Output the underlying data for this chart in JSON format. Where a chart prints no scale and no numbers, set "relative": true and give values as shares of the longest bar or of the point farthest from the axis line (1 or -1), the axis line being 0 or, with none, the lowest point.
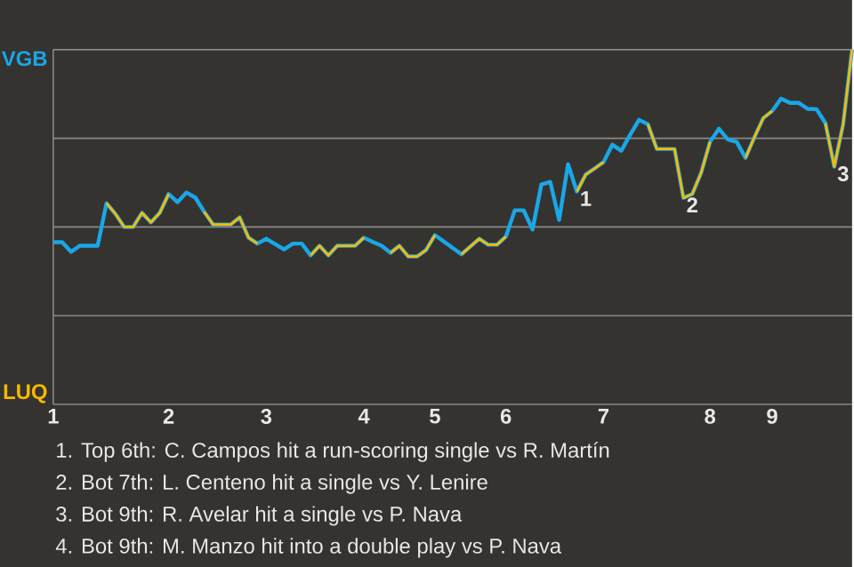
{
  "chart_data": {
    "type": "line",
    "relative": true,
    "categories": [
      "1",
      null,
      null,
      null,
      null,
      null,
      null,
      null,
      null,
      null,
      null,
      null,
      null,
      "2",
      null,
      null,
      null,
      null,
      null,
      null,
      null,
      null,
      null,
      null,
      "3",
      null,
      null,
      null,
      null,
      null,
      null,
      null,
      null,
      null,
      null,
      "4",
      null,
      null,
      null,
      null,
      null,
      null,
      null,
      "5",
      null,
      null,
      null,
      null,
      null,
      null,
      null,
      "6",
      null,
      null,
      null,
      null,
      null,
      null,
      null,
      null,
      null,
      null,
      "7",
      null,
      null,
      null,
      null,
      null,
      null,
      null,
      null,
      null,
      null,
      null,
      "8",
      null,
      null,
      null,
      null,
      null,
      null,
      "9",
      null,
      null,
      null,
      null,
      null,
      null,
      null,
      null,
      null
    ],
    "series": [
      {
        "color": "#1aa7e8",
        "values": [
          0.457,
          0.457,
          0.43,
          0.447,
          0.447,
          0.447,
          0.567,
          0.537,
          0.5,
          0.5,
          0.54,
          0.513,
          0.54,
          0.593,
          0.57,
          0.597,
          0.583,
          0.543,
          0.507,
          0.507,
          0.507,
          0.527,
          0.47,
          0.453,
          0.467,
          0.452,
          0.437,
          0.453,
          0.453,
          0.42,
          0.447,
          0.42,
          0.447,
          0.447,
          0.447,
          0.47,
          0.458,
          0.447,
          0.427,
          0.447,
          0.417,
          0.417,
          0.435,
          0.477,
          0.459,
          0.441,
          0.423,
          0.445,
          0.467,
          0.45,
          0.45,
          0.473,
          0.547,
          0.547,
          0.493,
          0.62,
          0.627,
          0.52,
          0.677,
          0.6,
          0.648,
          0.665,
          0.683,
          0.732,
          0.715,
          0.76,
          0.802,
          0.79,
          0.72,
          0.72,
          0.72,
          0.582,
          0.593,
          0.653,
          0.74,
          0.777,
          0.747,
          0.74,
          0.695,
          0.753,
          0.807,
          0.827,
          0.862,
          0.85,
          0.85,
          0.833,
          0.832,
          0.793,
          0.67,
          0.79,
          1
        ]
      },
      {
        "color": "#f7b900",
        "values": [
          null,
          null,
          null,
          null,
          null,
          null,
          0.567,
          0.537,
          0.5,
          0.5,
          0.54,
          0.513,
          0.54,
          0.593,
          null,
          null,
          null,
          0.543,
          0.507,
          0.507,
          0.507,
          0.527,
          0.47,
          0.453,
          null,
          null,
          null,
          null,
          null,
          0.42,
          0.447,
          0.42,
          0.447,
          0.447,
          0.447,
          0.47,
          null,
          null,
          0.427,
          0.447,
          0.417,
          0.417,
          0.435,
          0.477,
          null,
          null,
          0.423,
          0.445,
          0.467,
          0.45,
          0.45,
          0.473,
          null,
          null,
          null,
          null,
          null,
          null,
          null,
          0.6,
          0.648,
          0.665,
          0.683,
          null,
          null,
          null,
          null,
          0.79,
          0.72,
          0.72,
          0.72,
          0.582,
          0.593,
          0.653,
          0.74,
          null,
          null,
          null,
          0.695,
          0.753,
          0.807,
          0.827,
          null,
          null,
          null,
          null,
          null,
          0.793,
          0.67,
          0.79,
          1
        ]
      }
    ],
    "grid": "y",
    "annotations": [
      "1",
      "2",
      "3",
      "VGB",
      "LUQ",
      "1. Top 6th: C. Campos hit a run-scoring single vs R. Martín",
      "2. Bot 7th: L. Centeno hit a single vs Y. Lenire",
      "3. Bot 9th: R. Avelar hit a single vs P. Nava",
      "4. Bot 9th: M. Manzo hit into a double play vs P. Nava"
    ]
  }
}
